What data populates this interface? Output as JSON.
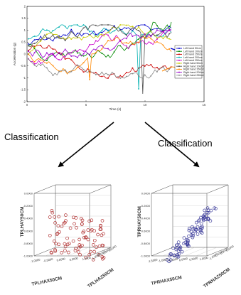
{
  "top_chart": {
    "ylabel": "Acceleration (g)",
    "xlabel": "Time (s)",
    "x_ticks": [
      "0",
      "5",
      "10",
      "15"
    ],
    "y_ticks": [
      "2",
      "1.5",
      "1",
      "0.5",
      "0",
      "-0.5",
      "-1",
      "-1.5",
      "-2"
    ],
    "legend": [
      {
        "label": "Left hand 50cm",
        "color": "#0000cc"
      },
      {
        "label": "Left hand 100cm",
        "color": "#008800"
      },
      {
        "label": "Left hand 150cm",
        "color": "#cc0000"
      },
      {
        "label": "Left hand 200cm",
        "color": "#00b0b0"
      },
      {
        "label": "Left hand 250cm",
        "color": "#cc00cc"
      },
      {
        "label": "Right hand 50cm",
        "color": "#c8c800"
      },
      {
        "label": "Right hand 100cm",
        "color": "#505050"
      },
      {
        "label": "Right hand 150cm",
        "color": "#ff8800"
      },
      {
        "label": "Right hand 200cm",
        "color": "#9900cc"
      },
      {
        "label": "Right hand 250cm",
        "color": "#888888"
      }
    ]
  },
  "arrows": {
    "left_label": "Classification",
    "right_label": "Classification"
  },
  "scatter_left": {
    "color": "#b03030",
    "z_label": "TPLHAY50CM",
    "x_label": "TPLHAX50CM",
    "y_label": "TPLHAZ50CM",
    "z_ticks": [
      "0.0000",
      "-0.2000",
      "-0.4000",
      "-0.6000",
      "-0.8000",
      "-1.0000"
    ],
    "x_ticks": [
      "-1.0000",
      "-0.5000",
      "0.0000",
      "0.5000",
      "1.0000"
    ],
    "y_ticks": [
      "-1.0000",
      "-0.5000",
      "0.0000",
      "0.5000"
    ]
  },
  "scatter_right": {
    "color": "#3a3a9a",
    "z_label": "TPRHAY50CM",
    "x_label": "TPRHAX50CM",
    "y_label": "TPRHAZ50CM",
    "z_ticks": [
      "0.0000",
      "-0.2000",
      "-0.4000",
      "-0.6000",
      "-0.8000",
      "-1.0000"
    ],
    "x_ticks": [
      "-1.5000",
      "-1.0000",
      "-0.5000",
      "0.0000",
      "0.5000",
      "1.0000"
    ],
    "y_ticks": [
      "-1.0000",
      "-0.5000",
      "0.0000",
      "0.5000"
    ]
  }
}
